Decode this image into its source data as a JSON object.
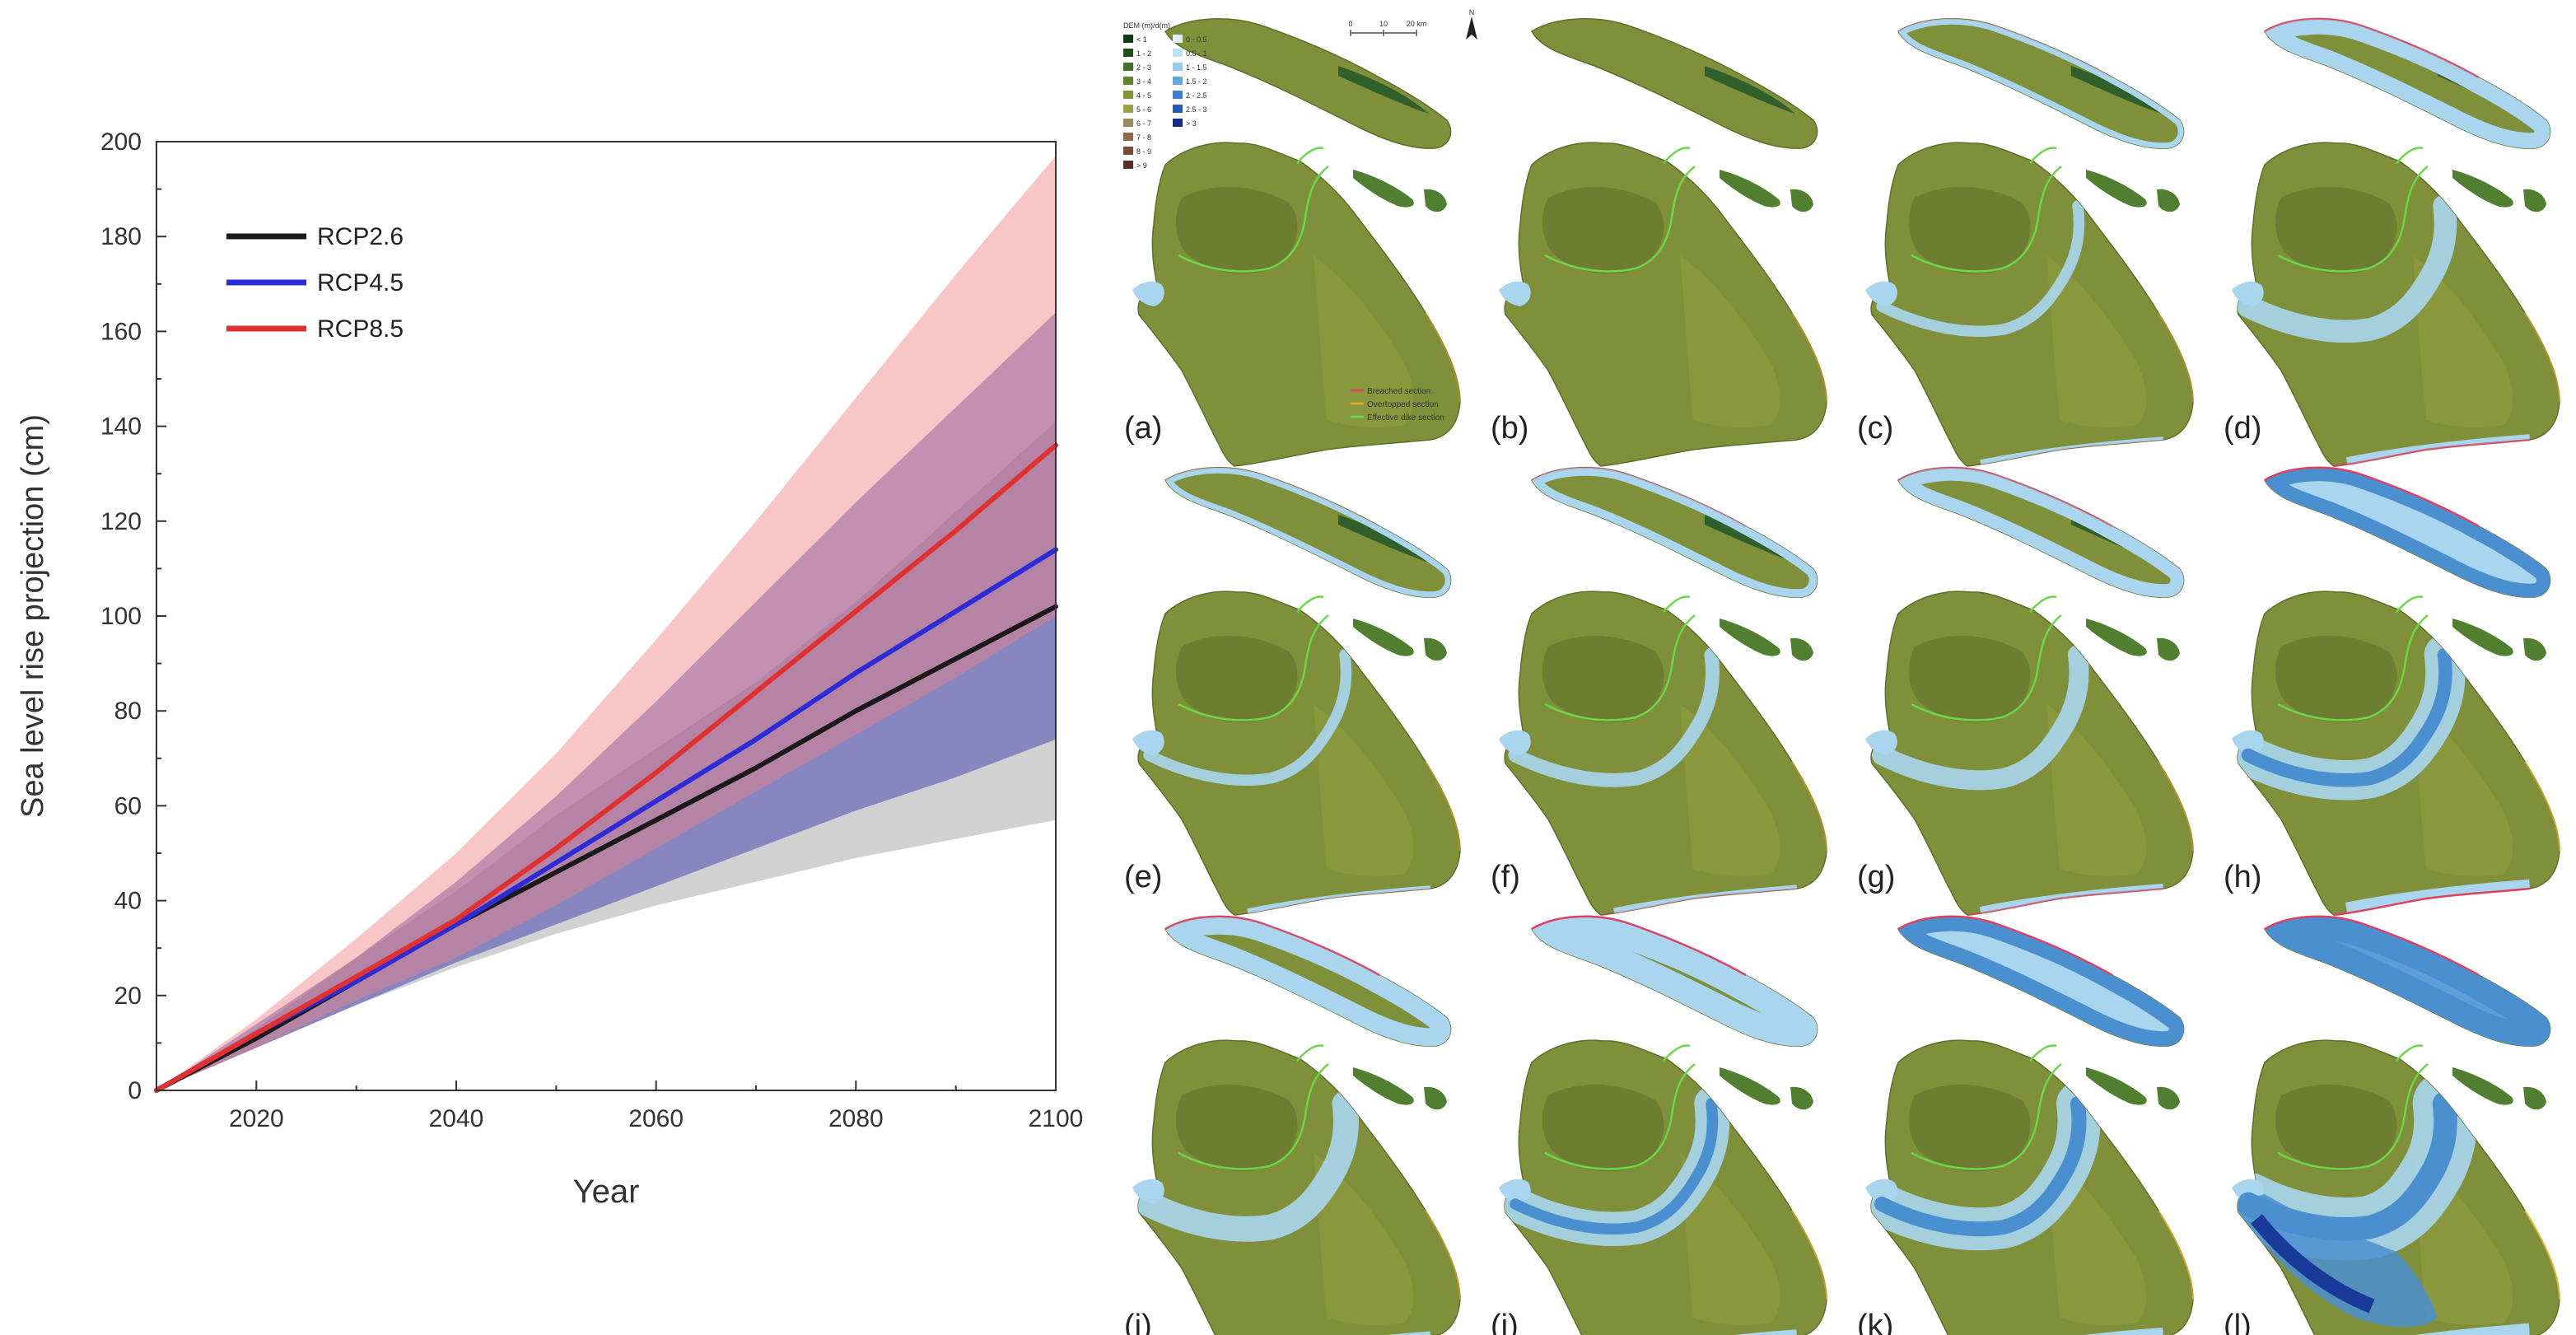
{
  "chart_data": {
    "type": "line",
    "title": "",
    "xlabel": "Year",
    "ylabel": "Sea level rise projection (cm)",
    "xlim": [
      2010,
      2100
    ],
    "ylim": [
      0,
      200
    ],
    "xticks": [
      2020,
      2040,
      2060,
      2080,
      2100
    ],
    "yticks": [
      0,
      20,
      40,
      60,
      80,
      100,
      120,
      140,
      160,
      180,
      200
    ],
    "grid": false,
    "legend_position": "top-left",
    "x": [
      2010,
      2020,
      2030,
      2040,
      2050,
      2060,
      2070,
      2080,
      2090,
      2100
    ],
    "series": [
      {
        "name": "RCP2.6",
        "color": "#1a1a1a",
        "band_color": "#9a9a9a",
        "values": [
          0,
          11,
          23,
          35,
          46,
          57,
          68,
          80,
          91,
          102
        ],
        "lower": [
          0,
          9,
          18,
          26,
          33,
          39,
          44,
          49,
          53,
          57
        ],
        "upper": [
          0,
          13,
          28,
          42,
          58,
          72,
          86,
          103,
          122,
          141
        ]
      },
      {
        "name": "RCP4.5",
        "color": "#2b2bd8",
        "band_color": "#3b3bb0",
        "values": [
          0,
          12,
          23,
          35,
          48,
          61,
          74,
          88,
          101,
          114
        ],
        "lower": [
          0,
          9,
          18,
          27,
          35,
          43,
          51,
          59,
          66,
          74
        ],
        "upper": [
          0,
          14,
          28,
          44,
          62,
          82,
          103,
          124,
          144,
          164
        ]
      },
      {
        "name": "RCP8.5",
        "color": "#e03030",
        "band_color": "#f08080",
        "values": [
          0,
          12,
          24,
          36,
          51,
          67,
          84,
          101,
          118,
          136
        ],
        "lower": [
          0,
          9,
          19,
          28,
          39,
          51,
          63,
          75,
          87,
          100
        ],
        "upper": [
          0,
          15,
          32,
          50,
          71,
          95,
          120,
          146,
          172,
          197
        ]
      }
    ]
  },
  "maps": {
    "panels": [
      "(a)",
      "(b)",
      "(c)",
      "(d)",
      "(e)",
      "(f)",
      "(g)",
      "(h)",
      "(i)",
      "(j)",
      "(k)",
      "(l)"
    ],
    "flood_levels": [
      0,
      0,
      0.05,
      0.25,
      0.05,
      0.1,
      0.2,
      0.55,
      0.3,
      0.45,
      0.6,
      0.95
    ],
    "legend": {
      "title": "DEM (m)/d(m)",
      "land_classes": [
        "< 1",
        "1 - 2",
        "2 - 3",
        "3 - 4",
        "4 - 5",
        "5 - 6",
        "6 - 7",
        "7 - 8",
        "8 - 9",
        "> 9"
      ],
      "water_classes": [
        "0 - 0.5",
        "0.5 - 1",
        "1 - 1.5",
        "1.5 - 2",
        "2 - 2.5",
        "2.5 - 3",
        "> 3"
      ]
    },
    "dike_legend": [
      "Breached section",
      "Overtopped section",
      "Effective dike section"
    ],
    "scale_bar": {
      "ticks": [
        "0",
        "10",
        "20 km"
      ]
    },
    "north_label": "N",
    "colors": {
      "land": "#7f8f3a",
      "land_dark": "#5f6f2a",
      "land_mid": "#93a040",
      "water_light": "#a9d6ee",
      "water_mid": "#4a90d0",
      "water_deep": "#1a3a9a",
      "dike_effective": "#6ad84a",
      "dike_breached": "#e04060",
      "dike_overtopped": "#e8b030"
    }
  }
}
